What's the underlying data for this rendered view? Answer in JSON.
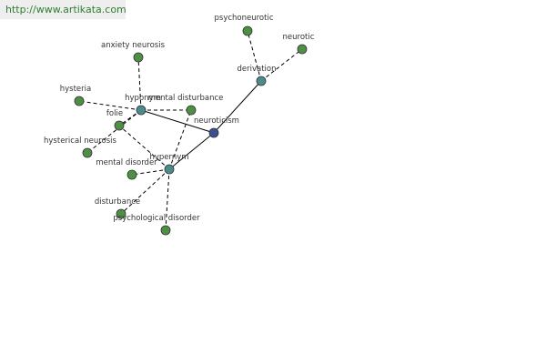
{
  "header": {
    "url": "http://www.artikata.com"
  },
  "nodes": [
    {
      "label": "neuroticism"
    },
    {
      "label": "hyponym"
    },
    {
      "label": "hypernym"
    },
    {
      "label": "derivation"
    },
    {
      "label": "psychoneurotic"
    },
    {
      "label": "neurotic"
    },
    {
      "label": "anxiety neurosis"
    },
    {
      "label": "hysteria"
    },
    {
      "label": "folie"
    },
    {
      "label": "hysterical neurosis"
    },
    {
      "label": "mental disturbance"
    },
    {
      "label": "mental disorder"
    },
    {
      "label": "disturbance"
    },
    {
      "label": "psychological disorder"
    }
  ]
}
